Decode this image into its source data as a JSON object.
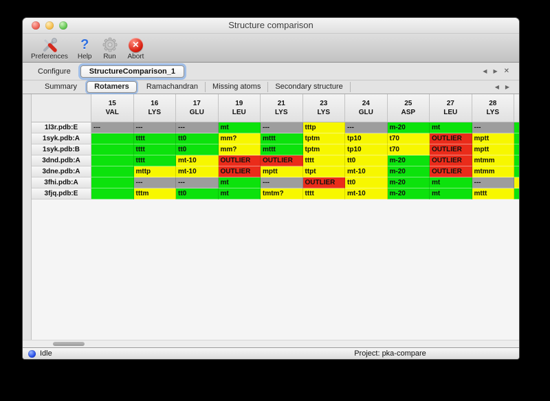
{
  "window": {
    "title": "Structure comparison"
  },
  "toolbar": {
    "items": [
      {
        "icon": "tools-icon",
        "label": "Preferences"
      },
      {
        "icon": "question-mark-icon",
        "label": "Help"
      },
      {
        "icon": "gear-icon",
        "label": "Run"
      },
      {
        "icon": "abort-x-icon",
        "label": "Abort"
      }
    ]
  },
  "configure": {
    "label": "Configure",
    "value": "StructureComparison_1",
    "nav": {
      "prev": "◀",
      "next": "▶",
      "close": "✕"
    }
  },
  "tabs": {
    "items": [
      "Summary",
      "Rotamers",
      "Ramachandran",
      "Missing atoms",
      "Secondary structure"
    ],
    "selected": "Rotamers",
    "nav": {
      "prev": "◀",
      "next": "▶"
    }
  },
  "colors": {
    "green": "#0ce20c",
    "yellow": "#f7f700",
    "red": "#ea2c1a",
    "gray": "#9d9d9d"
  },
  "table": {
    "columns": [
      {
        "num": "15",
        "res": "VAL"
      },
      {
        "num": "16",
        "res": "LYS"
      },
      {
        "num": "17",
        "res": "GLU"
      },
      {
        "num": "19",
        "res": "LEU"
      },
      {
        "num": "21",
        "res": "LYS"
      },
      {
        "num": "23",
        "res": "LYS"
      },
      {
        "num": "24",
        "res": "GLU"
      },
      {
        "num": "25",
        "res": "ASP"
      },
      {
        "num": "27",
        "res": "LEU"
      },
      {
        "num": "28",
        "res": "LYS"
      }
    ],
    "rows": [
      {
        "label": "1l3r.pdb:E",
        "cells": [
          [
            "---",
            "gray"
          ],
          [
            "---",
            "gray"
          ],
          [
            "---",
            "gray"
          ],
          [
            "mt",
            "green"
          ],
          [
            "---",
            "gray"
          ],
          [
            "tttp",
            "yellow"
          ],
          [
            "---",
            "gray"
          ],
          [
            "m-20",
            "green"
          ],
          [
            "mt",
            "green"
          ],
          [
            "---",
            "gray"
          ]
        ],
        "extra": "green"
      },
      {
        "label": "1syk.pdb:A",
        "cells": [
          [
            "",
            "green"
          ],
          [
            "tttt",
            "green"
          ],
          [
            "tt0",
            "green"
          ],
          [
            "mm?",
            "yellow"
          ],
          [
            "mttt",
            "green"
          ],
          [
            "tptm",
            "yellow"
          ],
          [
            "tp10",
            "yellow"
          ],
          [
            "t70",
            "yellow"
          ],
          [
            "OUTLIER",
            "red"
          ],
          [
            "mptt",
            "yellow"
          ]
        ],
        "extra": "green"
      },
      {
        "label": "1syk.pdb:B",
        "cells": [
          [
            "",
            "green"
          ],
          [
            "tttt",
            "green"
          ],
          [
            "tt0",
            "green"
          ],
          [
            "mm?",
            "yellow"
          ],
          [
            "mttt",
            "green"
          ],
          [
            "tptm",
            "yellow"
          ],
          [
            "tp10",
            "yellow"
          ],
          [
            "t70",
            "yellow"
          ],
          [
            "OUTLIER",
            "red"
          ],
          [
            "mptt",
            "yellow"
          ]
        ],
        "extra": "green"
      },
      {
        "label": "3dnd.pdb:A",
        "cells": [
          [
            "",
            "green"
          ],
          [
            "tttt",
            "green"
          ],
          [
            "mt-10",
            "yellow"
          ],
          [
            "OUTLIER",
            "red"
          ],
          [
            "OUTLIER",
            "red"
          ],
          [
            "tttt",
            "yellow"
          ],
          [
            "tt0",
            "yellow"
          ],
          [
            "m-20",
            "green"
          ],
          [
            "OUTLIER",
            "red"
          ],
          [
            "mtmm",
            "yellow"
          ]
        ],
        "extra": "green"
      },
      {
        "label": "3dne.pdb:A",
        "cells": [
          [
            "",
            "green"
          ],
          [
            "mttp",
            "yellow"
          ],
          [
            "mt-10",
            "yellow"
          ],
          [
            "OUTLIER",
            "red"
          ],
          [
            "mptt",
            "yellow"
          ],
          [
            "ttpt",
            "yellow"
          ],
          [
            "mt-10",
            "yellow"
          ],
          [
            "m-20",
            "green"
          ],
          [
            "OUTLIER",
            "red"
          ],
          [
            "mtmm",
            "yellow"
          ]
        ],
        "extra": "green"
      },
      {
        "label": "3fhi.pdb:A",
        "cells": [
          [
            "",
            "green"
          ],
          [
            "---",
            "gray"
          ],
          [
            "---",
            "gray"
          ],
          [
            "mt",
            "green"
          ],
          [
            "---",
            "gray"
          ],
          [
            "OUTLIER",
            "red"
          ],
          [
            "tt0",
            "yellow"
          ],
          [
            "m-20",
            "green"
          ],
          [
            "mt",
            "green"
          ],
          [
            "---",
            "gray"
          ]
        ],
        "extra": "yellow"
      },
      {
        "label": "3fjq.pdb:E",
        "cells": [
          [
            "",
            "green"
          ],
          [
            "tttm",
            "yellow"
          ],
          [
            "tt0",
            "green"
          ],
          [
            "mt",
            "green"
          ],
          [
            "tmtm?",
            "yellow"
          ],
          [
            "tttt",
            "yellow"
          ],
          [
            "mt-10",
            "yellow"
          ],
          [
            "m-20",
            "green"
          ],
          [
            "mt",
            "green"
          ],
          [
            "mttt",
            "yellow"
          ]
        ],
        "extra": "green"
      }
    ]
  },
  "statusbar": {
    "status": "Idle",
    "project": "Project: pka-compare"
  }
}
